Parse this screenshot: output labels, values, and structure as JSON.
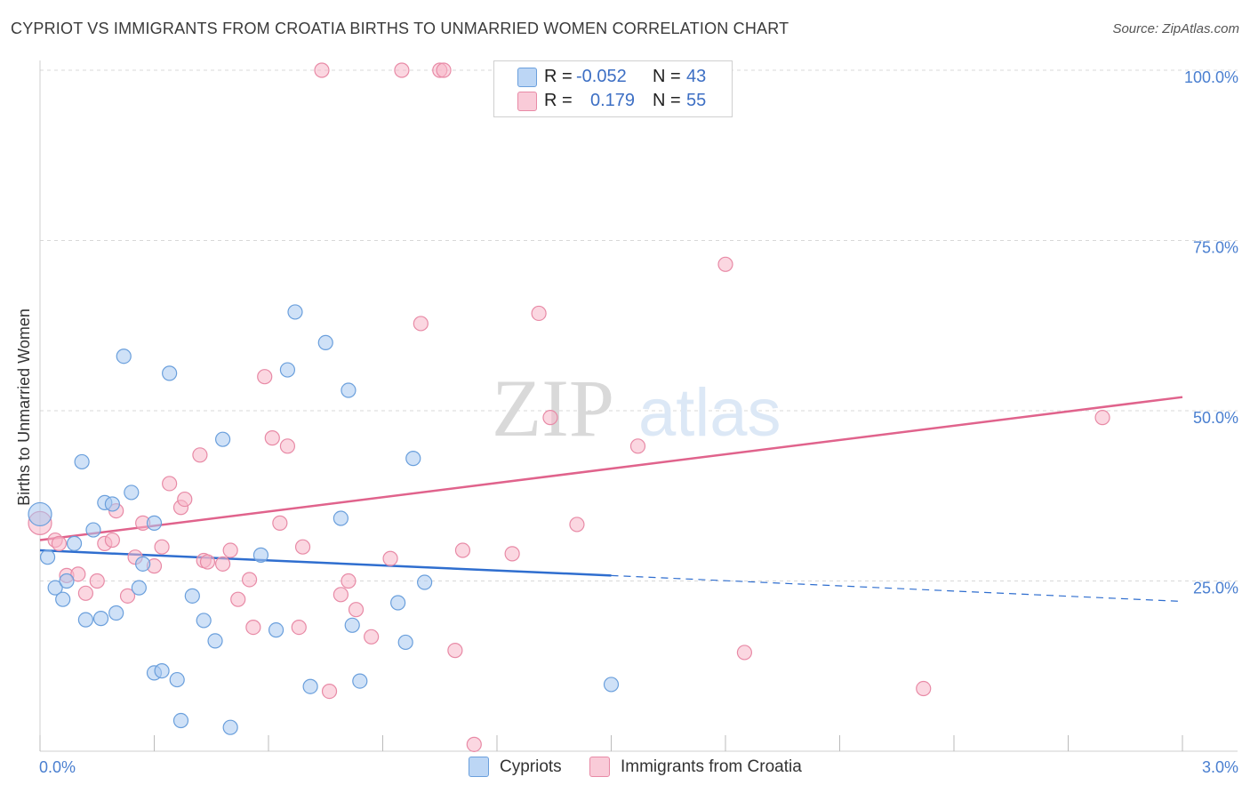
{
  "title": "CYPRIOT VS IMMIGRANTS FROM CROATIA BIRTHS TO UNMARRIED WOMEN CORRELATION CHART",
  "source": "Source: ZipAtlas.com",
  "watermark": {
    "zip": "ZIP",
    "atlas": "atlas"
  },
  "legend": {
    "rows": [
      {
        "r_label": "R =",
        "r_value": "-0.052",
        "n_label": "N =",
        "n_value": "43",
        "color": "#a8c8f0"
      },
      {
        "r_label": "R =",
        "r_value": "0.179",
        "n_label": "N =",
        "n_value": "55",
        "color": "#f7b6c8"
      }
    ]
  },
  "bottom_legend": {
    "cypriots": "Cypriots",
    "croatia": "Immigrants from Croatia"
  },
  "colors": {
    "blue_fill": "#a8c8f0",
    "blue_stroke": "#6a9fdc",
    "blue_line": "#2f6ecf",
    "pink_fill": "#f7b6c8",
    "pink_stroke": "#e88aa6",
    "pink_line": "#e0638c",
    "tick_text": "#4a7fd0",
    "grid": "#d8d8d8"
  },
  "chart_data": {
    "type": "scatter",
    "title": "CYPRIOT VS IMMIGRANTS FROM CROATIA BIRTHS TO UNMARRIED WOMEN CORRELATION CHART",
    "xlabel": "",
    "ylabel": "Births to Unmarried Women",
    "xlim": [
      0,
      3.0
    ],
    "ylim": [
      0,
      100
    ],
    "x_tick_labels": [
      "0.0%",
      "3.0%"
    ],
    "y_tick_labels": [
      "25.0%",
      "50.0%",
      "75.0%",
      "100.0%"
    ],
    "y_ticks": [
      25,
      50,
      75,
      100
    ],
    "grid": true,
    "legend_position": "top-center",
    "series": [
      {
        "name": "Cypriots",
        "points": [
          [
            0.0,
            34.8
          ],
          [
            0.02,
            28.5
          ],
          [
            0.04,
            24.0
          ],
          [
            0.06,
            22.3
          ],
          [
            0.07,
            25.0
          ],
          [
            0.09,
            30.5
          ],
          [
            0.11,
            42.5
          ],
          [
            0.12,
            19.3
          ],
          [
            0.14,
            32.5
          ],
          [
            0.16,
            19.5
          ],
          [
            0.17,
            36.5
          ],
          [
            0.19,
            36.3
          ],
          [
            0.2,
            20.3
          ],
          [
            0.22,
            58.0
          ],
          [
            0.24,
            38.0
          ],
          [
            0.26,
            24.0
          ],
          [
            0.27,
            27.5
          ],
          [
            0.3,
            33.5
          ],
          [
            0.3,
            11.5
          ],
          [
            0.32,
            11.8
          ],
          [
            0.34,
            55.5
          ],
          [
            0.36,
            10.5
          ],
          [
            0.37,
            4.5
          ],
          [
            0.4,
            22.8
          ],
          [
            0.43,
            19.2
          ],
          [
            0.46,
            16.2
          ],
          [
            0.48,
            45.8
          ],
          [
            0.5,
            3.5
          ],
          [
            0.58,
            28.8
          ],
          [
            0.62,
            17.8
          ],
          [
            0.65,
            56.0
          ],
          [
            0.67,
            64.5
          ],
          [
            0.71,
            9.5
          ],
          [
            0.75,
            60.0
          ],
          [
            0.79,
            34.2
          ],
          [
            0.81,
            53.0
          ],
          [
            0.82,
            18.5
          ],
          [
            0.84,
            10.3
          ],
          [
            0.94,
            21.8
          ],
          [
            0.96,
            16.0
          ],
          [
            0.98,
            43.0
          ],
          [
            1.01,
            24.8
          ],
          [
            1.5,
            9.8
          ]
        ],
        "trend": {
          "x": [
            0.0,
            1.5
          ],
          "y": [
            29.5,
            25.8
          ],
          "dashed_to": [
            3.0,
            22.0
          ]
        }
      },
      {
        "name": "Immigrants from Croatia",
        "points": [
          [
            0.0,
            33.5
          ],
          [
            0.04,
            31.0
          ],
          [
            0.05,
            30.5
          ],
          [
            0.07,
            25.8
          ],
          [
            0.1,
            26.0
          ],
          [
            0.12,
            23.2
          ],
          [
            0.15,
            25.0
          ],
          [
            0.17,
            30.5
          ],
          [
            0.19,
            31.0
          ],
          [
            0.2,
            35.3
          ],
          [
            0.23,
            22.8
          ],
          [
            0.25,
            28.5
          ],
          [
            0.27,
            33.5
          ],
          [
            0.3,
            27.2
          ],
          [
            0.32,
            30.0
          ],
          [
            0.34,
            39.3
          ],
          [
            0.37,
            35.8
          ],
          [
            0.38,
            37.0
          ],
          [
            0.42,
            43.5
          ],
          [
            0.43,
            28.0
          ],
          [
            0.44,
            27.8
          ],
          [
            0.48,
            27.5
          ],
          [
            0.5,
            29.5
          ],
          [
            0.52,
            22.3
          ],
          [
            0.55,
            25.2
          ],
          [
            0.56,
            18.2
          ],
          [
            0.59,
            55.0
          ],
          [
            0.61,
            46.0
          ],
          [
            0.63,
            33.5
          ],
          [
            0.65,
            44.8
          ],
          [
            0.68,
            18.2
          ],
          [
            0.69,
            30.0
          ],
          [
            0.74,
            100.0
          ],
          [
            0.76,
            8.8
          ],
          [
            0.79,
            23.0
          ],
          [
            0.81,
            25.0
          ],
          [
            0.83,
            20.8
          ],
          [
            0.87,
            16.8
          ],
          [
            0.92,
            28.3
          ],
          [
            0.95,
            100.0
          ],
          [
            1.0,
            62.8
          ],
          [
            1.05,
            100.0
          ],
          [
            1.06,
            100.0
          ],
          [
            1.09,
            14.8
          ],
          [
            1.11,
            29.5
          ],
          [
            1.14,
            1.0
          ],
          [
            1.24,
            29.0
          ],
          [
            1.31,
            64.3
          ],
          [
            1.34,
            49.0
          ],
          [
            1.41,
            33.3
          ],
          [
            1.57,
            44.8
          ],
          [
            1.8,
            71.5
          ],
          [
            1.85,
            14.5
          ],
          [
            2.32,
            9.2
          ],
          [
            2.79,
            49.0
          ]
        ],
        "trend": {
          "x": [
            0.0,
            3.0
          ],
          "y": [
            31.0,
            52.0
          ]
        }
      }
    ]
  }
}
